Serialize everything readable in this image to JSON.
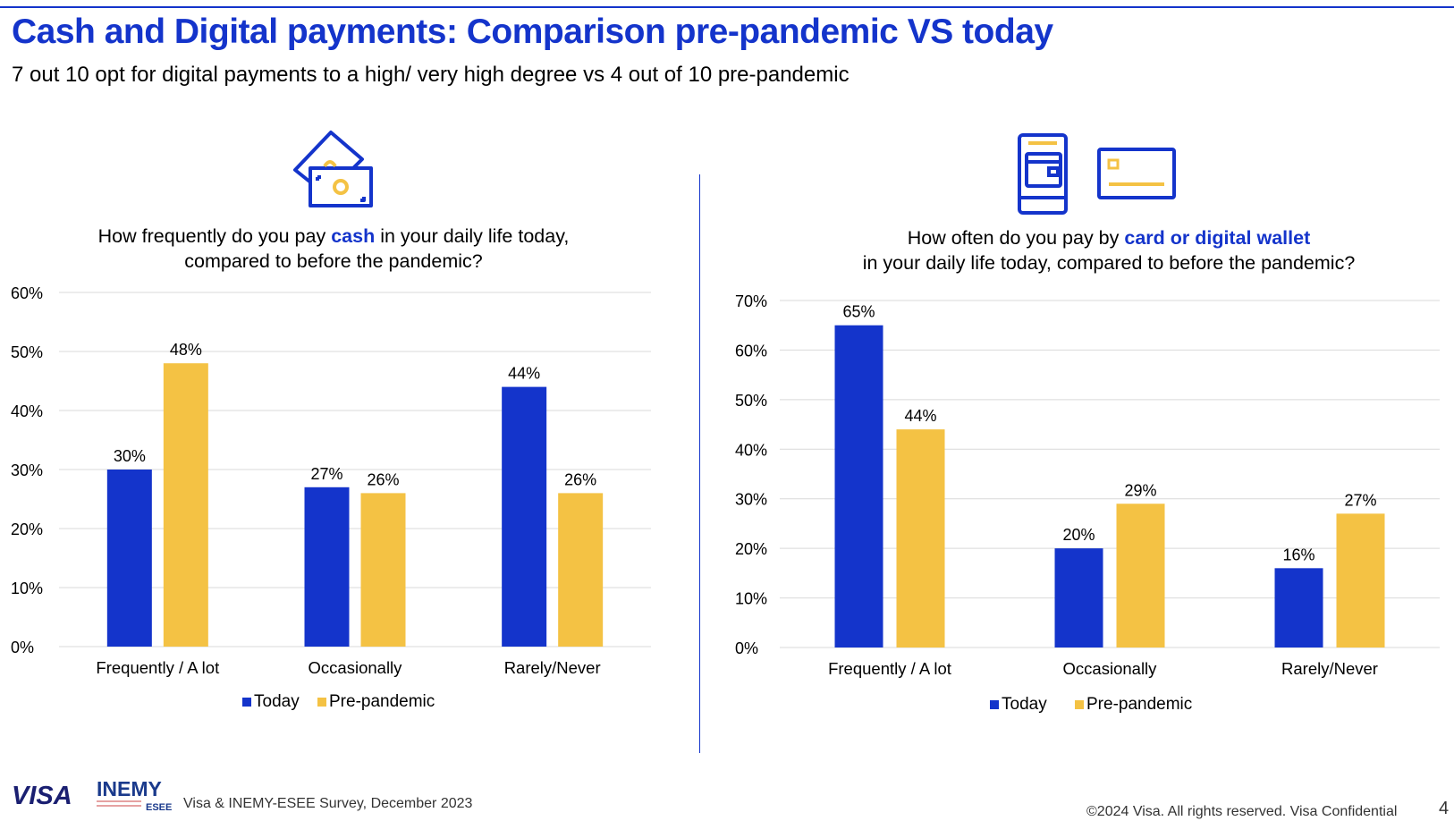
{
  "header": {
    "title": "Cash and Digital payments: Comparison pre-pandemic VS today",
    "subtitle": "7 out 10 opt for digital payments to a high/ very high degree vs 4 out of 10 pre-pandemic"
  },
  "colors": {
    "today": "#1434CB",
    "prepandemic": "#F4C244",
    "accent": "#1434CB",
    "grid": "#d9d9d9"
  },
  "icons": {
    "left": "cash-banknotes-icon",
    "right_phone": "mobile-wallet-icon",
    "right_card": "card-icon"
  },
  "chart_data": [
    {
      "type": "bar",
      "question": {
        "pre": "How frequently do you pay ",
        "highlight": "cash",
        "post": " in your daily life today,",
        "line2": "compared to before the pandemic?"
      },
      "categories": [
        "Frequently / A lot",
        "Occasionally",
        "Rarely/Never"
      ],
      "series": [
        {
          "name": "Today",
          "values": [
            30,
            27,
            44
          ],
          "labels": [
            "30%",
            "27%",
            "44%"
          ]
        },
        {
          "name": "Pre-pandemic",
          "values": [
            48,
            26,
            26
          ],
          "labels": [
            "48%",
            "26%",
            "26%"
          ]
        }
      ],
      "ylim": [
        0,
        60
      ],
      "yticks": [
        "0%",
        "10%",
        "20%",
        "30%",
        "40%",
        "50%",
        "60%"
      ],
      "legend": "bottom",
      "grid": true
    },
    {
      "type": "bar",
      "question": {
        "pre": "How often do you pay by ",
        "highlight": "card or digital wallet",
        "post": "",
        "line2": "in your daily life today, compared to before the pandemic?"
      },
      "categories": [
        "Frequently / A lot",
        "Occasionally",
        "Rarely/Never"
      ],
      "series": [
        {
          "name": "Today",
          "values": [
            65,
            20,
            16
          ],
          "labels": [
            "65%",
            "20%",
            "16%"
          ]
        },
        {
          "name": "Pre-pandemic",
          "values": [
            44,
            29,
            27
          ],
          "labels": [
            "44%",
            "29%",
            "27%"
          ]
        }
      ],
      "ylim": [
        0,
        70
      ],
      "yticks": [
        "0%",
        "10%",
        "20%",
        "30%",
        "40%",
        "50%",
        "60%",
        "70%"
      ],
      "legend": "bottom",
      "grid": true
    }
  ],
  "footer": {
    "visa_logo": "VISA",
    "inemy_logo": "INEMY",
    "esee_logo": "ESEE",
    "source": "Visa & INEMY-ESEE Survey, December 2023",
    "copyright": "©2024 Visa. All rights reserved. Visa Confidential",
    "page_number": "4"
  }
}
